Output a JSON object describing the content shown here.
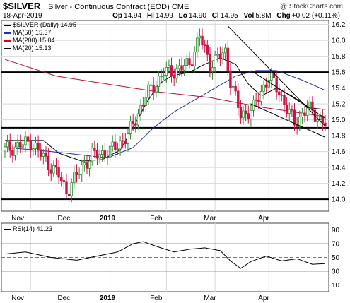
{
  "header": {
    "symbol": "$SILVER",
    "description": "Silver - Continuous Contract (EOD)",
    "exchange": "CME",
    "watermark": "@ StockCharts.com",
    "date": "18-Apr-2019",
    "ohlc": {
      "open_label": "Op",
      "open": "14.94",
      "high_label": "Hi",
      "high": "14.99",
      "low_label": "Lo",
      "low": "14.90",
      "close_label": "Cl",
      "close": "14.95",
      "vol_label": "Vol",
      "vol": "5.8M",
      "chg_label": "Chg",
      "chg": "+0.02 (+0.11%)"
    }
  },
  "legend": [
    {
      "label": "$SILVER (Daily) 14.95",
      "color": "#000000"
    },
    {
      "label": "MA(50) 15.37",
      "color": "#1f2fa8"
    },
    {
      "label": "MA(200) 15.04",
      "color": "#c0102a"
    },
    {
      "label": "MA(20) 15.13",
      "color": "#000000"
    }
  ],
  "rsi_label": "RSI(14) 41.23",
  "colors": {
    "up": "#2a8a2a",
    "down": "#cc1144",
    "ma50": "#1f2fa8",
    "ma200": "#c0102a",
    "ma20": "#000000"
  },
  "chart_data": {
    "type": "candlestick",
    "title": "$SILVER Silver - Continuous Contract (EOD) CME",
    "price_axis": {
      "min": 13.85,
      "max": 16.25,
      "ticks": [
        14.0,
        14.2,
        14.4,
        14.6,
        14.8,
        15.0,
        15.2,
        15.4,
        15.6,
        15.8,
        16.0,
        16.2
      ]
    },
    "x_labels": [
      "Nov",
      "Dec",
      "2019",
      "Feb",
      "Mar",
      "Apr"
    ],
    "price_anchor_days": [
      0,
      10,
      21,
      24,
      31,
      34,
      41,
      48,
      55,
      62,
      65,
      72,
      76,
      80,
      86,
      88,
      92,
      97,
      103,
      107,
      113,
      118,
      125
    ],
    "price_anchor_closes": [
      14.62,
      14.72,
      14.3,
      14.1,
      14.45,
      14.55,
      14.6,
      14.8,
      15.3,
      15.6,
      15.6,
      15.7,
      16.05,
      15.7,
      15.85,
      15.5,
      15.05,
      15.15,
      15.55,
      15.35,
      14.95,
      15.15,
      14.95
    ],
    "ma20_anchor_days": [
      0,
      15,
      21,
      30,
      38,
      45,
      50,
      55,
      60,
      65,
      72,
      78,
      84,
      90,
      95,
      100,
      106,
      112,
      119,
      125
    ],
    "ma20_anchor_values": [
      14.74,
      14.74,
      14.58,
      14.48,
      14.5,
      14.62,
      14.9,
      15.2,
      15.45,
      15.55,
      15.6,
      15.7,
      15.78,
      15.7,
      15.45,
      15.3,
      15.4,
      15.3,
      15.15,
      15.13
    ],
    "ma50_anchor_days": [
      0,
      12,
      24,
      40,
      50,
      58,
      66,
      74,
      82,
      90,
      98,
      106,
      116,
      125
    ],
    "ma50_anchor_values": [
      14.65,
      14.62,
      14.58,
      14.52,
      14.65,
      14.9,
      15.1,
      15.25,
      15.4,
      15.55,
      15.62,
      15.62,
      15.5,
      15.37
    ],
    "ma200_anchor_days": [
      0,
      20,
      40,
      60,
      80,
      100,
      125
    ],
    "ma200_anchor_values": [
      15.76,
      15.55,
      15.45,
      15.35,
      15.28,
      15.16,
      15.04
    ],
    "horizontal_levels": [
      15.6,
      14.9,
      14.0
    ],
    "trendlines": [
      {
        "from": {
          "day": 87,
          "price": 16.18
        },
        "to": {
          "day": 125,
          "price": 14.92
        }
      },
      {
        "from": {
          "day": 96,
          "price": 15.2
        },
        "to": {
          "day": 125,
          "price": 14.78
        }
      },
      {
        "from": {
          "day": 96,
          "price": 15.62
        },
        "to": {
          "day": 125,
          "price": 15.02
        }
      }
    ],
    "rsi": {
      "range": [
        0,
        100
      ],
      "ticks": [
        10,
        30,
        50,
        70,
        90
      ],
      "reference_lines": [
        30,
        50,
        70
      ],
      "anchor_days": [
        0,
        8,
        18,
        28,
        36,
        44,
        50,
        54,
        60,
        66,
        72,
        78,
        84,
        88,
        92,
        96,
        102,
        108,
        114,
        120,
        125
      ],
      "anchor_values": [
        55,
        58,
        50,
        46,
        52,
        58,
        70,
        73,
        65,
        58,
        62,
        64,
        60,
        45,
        34,
        44,
        52,
        45,
        48,
        40,
        41
      ]
    }
  }
}
